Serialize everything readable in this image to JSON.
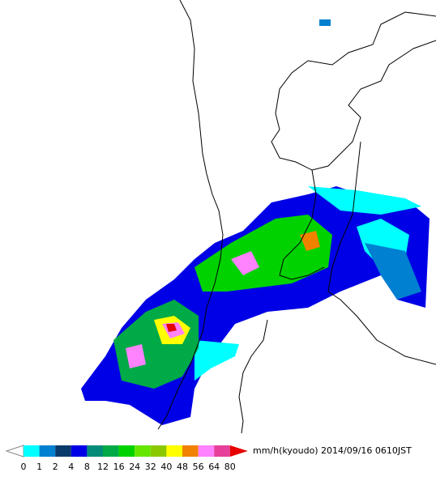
{
  "legend": {
    "unit": "mm/h(kyoudo)",
    "timestamp": "2014/09/16 0610JST",
    "ticks": [
      0,
      1,
      2,
      4,
      8,
      12,
      16,
      24,
      32,
      40,
      48,
      56,
      64,
      80
    ],
    "colors": [
      "#ffffff",
      "#00ffff",
      "#0080d0",
      "#0a3a6a",
      "#0000e6",
      "#008c78",
      "#00aa46",
      "#00d200",
      "#64e600",
      "#8cc800",
      "#ffff00",
      "#f08200",
      "#ff82ff",
      "#e6409b",
      "#e60000"
    ]
  }
}
